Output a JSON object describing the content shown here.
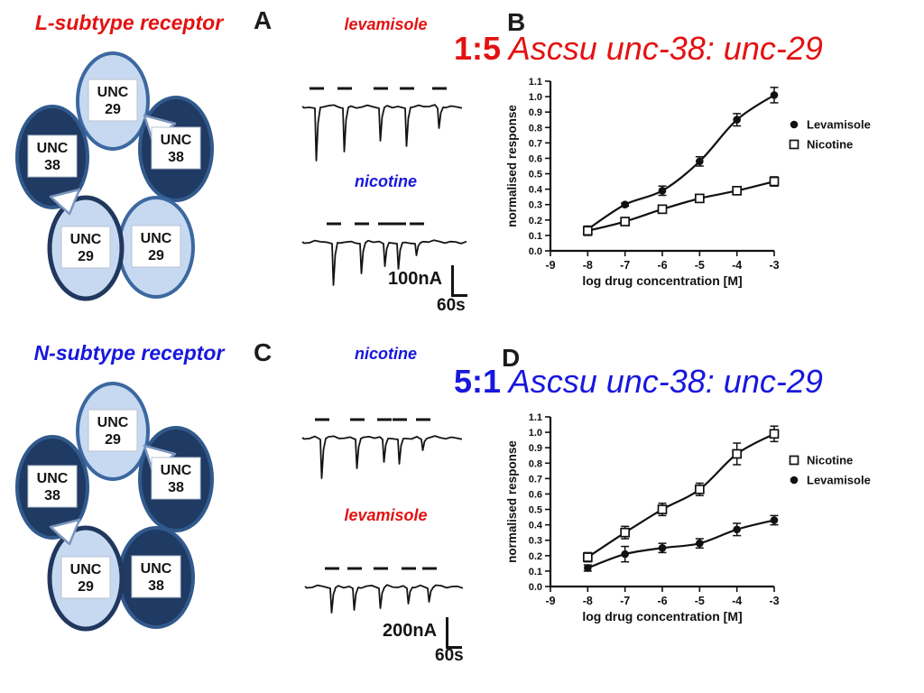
{
  "colors": {
    "red": "#e31212",
    "blue": "#1717dd",
    "black": "#1a1a1a",
    "dark_oval_fill": "#1f3a63",
    "dark_oval_border": "#31598c",
    "light_oval_fill": "#c6d9f0",
    "light_oval_border": "#3c68a0",
    "accent_border_dark": "#20375e",
    "arrow_fill": "#ffffff",
    "arrow_border": "#7a95bc"
  },
  "diagrams": {
    "l": {
      "title": "L-subtype receptor",
      "color": "red",
      "subunits": [
        {
          "pos": "top",
          "line1": "UNC",
          "line2": "29",
          "shade": "light"
        },
        {
          "pos": "left",
          "line1": "UNC",
          "line2": "38",
          "shade": "dark"
        },
        {
          "pos": "right",
          "line1": "UNC",
          "line2": "38",
          "shade": "dark"
        },
        {
          "pos": "bottom-right",
          "line1": "UNC",
          "line2": "29",
          "shade": "light"
        },
        {
          "pos": "bottom-left",
          "line1": "UNC",
          "line2": "29",
          "shade": "light",
          "border": "dark"
        }
      ]
    },
    "n": {
      "title": "N-subtype receptor",
      "color": "blue",
      "subunits": [
        {
          "pos": "top",
          "line1": "UNC",
          "line2": "29",
          "shade": "light"
        },
        {
          "pos": "left",
          "line1": "UNC",
          "line2": "38",
          "shade": "dark"
        },
        {
          "pos": "right",
          "line1": "UNC",
          "line2": "38",
          "shade": "dark"
        },
        {
          "pos": "bottom-right",
          "line1": "UNC",
          "line2": "38",
          "shade": "dark"
        },
        {
          "pos": "bottom-left",
          "line1": "UNC",
          "line2": "29",
          "shade": "light",
          "border": "dark"
        }
      ]
    }
  },
  "panels": {
    "a": {
      "label": "A",
      "traces": [
        {
          "drug": "levamisole",
          "color": "red",
          "pulse_x": [
            16,
            47,
            87,
            116,
            152
          ],
          "spike_depths": [
            60,
            50,
            38,
            44,
            24
          ],
          "baseline": 30,
          "height": 95
        },
        {
          "drug": "nicotine",
          "color": "blue",
          "pulse_x": [
            35,
            66,
            92,
            107,
            127
          ],
          "spike_depths": [
            48,
            35,
            27,
            30,
            15
          ],
          "baseline": 28,
          "height": 80
        }
      ],
      "scale_current": "100nA",
      "scale_time": "60s"
    },
    "c": {
      "label": "C",
      "traces": [
        {
          "drug": "nicotine",
          "color": "blue",
          "pulse_x": [
            22,
            61,
            91,
            108,
            134
          ],
          "spike_depths": [
            45,
            34,
            27,
            29,
            14
          ],
          "baseline": 33,
          "height": 85
        },
        {
          "drug": "levamisole",
          "color": "red",
          "pulse_x": [
            30,
            55,
            84,
            115,
            138
          ],
          "spike_depths": [
            29,
            26,
            24,
            19,
            17
          ],
          "baseline": 28,
          "height": 65
        }
      ],
      "scale_current": "200nA",
      "scale_time": "60s"
    },
    "b": {
      "label": "B",
      "title_ratio": "1:5",
      "title_rest": " Ascsu unc-38: unc-29",
      "color": "red"
    },
    "d": {
      "label": "D",
      "title_ratio": "5:1",
      "title_rest": " Ascsu unc-38: unc-29",
      "color": "blue"
    }
  },
  "chart_data": [
    {
      "id": "B",
      "type": "scatter",
      "x": [
        -8,
        -7,
        -6,
        -5,
        -4,
        -3
      ],
      "series": [
        {
          "name": "Levamisole",
          "marker": "filled-circle",
          "values": [
            0.14,
            0.3,
            0.39,
            0.58,
            0.85,
            1.01
          ],
          "errors": [
            0.02,
            0.01,
            0.03,
            0.03,
            0.04,
            0.05
          ]
        },
        {
          "name": "Nicotine",
          "marker": "open-square",
          "values": [
            0.13,
            0.19,
            0.27,
            0.34,
            0.39,
            0.45
          ],
          "errors": [
            0.03,
            0.02,
            0.01,
            0.01,
            0.01,
            0.03
          ]
        }
      ],
      "xlabel": "log drug concentration [M]",
      "ylabel": "normalised response",
      "xlim": [
        -9,
        -3
      ],
      "ylim": [
        0.0,
        1.1
      ],
      "xticks": [
        -9,
        -8,
        -7,
        -6,
        -5,
        -4,
        -3
      ],
      "ytick_step": 0.1,
      "grid": false,
      "legend_position": "right"
    },
    {
      "id": "D",
      "type": "scatter",
      "x": [
        -8,
        -7,
        -6,
        -5,
        -4,
        -3
      ],
      "series": [
        {
          "name": "Nicotine",
          "marker": "open-square",
          "values": [
            0.19,
            0.35,
            0.5,
            0.63,
            0.86,
            0.99
          ],
          "errors": [
            0.03,
            0.04,
            0.04,
            0.04,
            0.07,
            0.05
          ]
        },
        {
          "name": "Levamisole",
          "marker": "filled-circle",
          "values": [
            0.12,
            0.21,
            0.25,
            0.28,
            0.37,
            0.43
          ],
          "errors": [
            0.02,
            0.05,
            0.03,
            0.03,
            0.04,
            0.03
          ]
        }
      ],
      "xlabel": "log drug concentration [M]",
      "ylabel": "normalised response",
      "xlim": [
        -9,
        -3
      ],
      "ylim": [
        0.0,
        1.1
      ],
      "xticks": [
        -9,
        -8,
        -7,
        -6,
        -5,
        -4,
        -3
      ],
      "ytick_step": 0.1,
      "grid": false,
      "legend_position": "right"
    }
  ]
}
